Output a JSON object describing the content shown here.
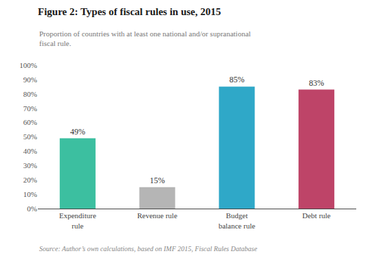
{
  "chart_data": {
    "type": "bar",
    "title": "Figure 2: Types of fiscal rules in use, 2015",
    "subtitle": "Proportion of countries with at least one national and/or supranational\nfiscal rule.",
    "source": "Source: Author’s own calculations, based on IMF 2015, Fiscal Rules Database",
    "categories": [
      "Expenditure\nrule",
      "Revenue rule",
      "Budget\nbalance rule",
      "Debt rule"
    ],
    "values": [
      49,
      15,
      85,
      83
    ],
    "value_labels": [
      "49%",
      "15%",
      "85%",
      "83%"
    ],
    "colors": [
      "#3cbfa0",
      "#b5b5b5",
      "#2fa8c8",
      "#be4468"
    ],
    "data_labels": true,
    "ylim": [
      0,
      100
    ],
    "yticks": [
      {
        "value": 0,
        "label": "0%"
      },
      {
        "value": 10,
        "label": "10%"
      },
      {
        "value": 20,
        "label": "20%"
      },
      {
        "value": 30,
        "label": "30%"
      },
      {
        "value": 40,
        "label": "40%"
      },
      {
        "value": 50,
        "label": "50%"
      },
      {
        "value": 60,
        "label": "60%"
      },
      {
        "value": 70,
        "label": "70%"
      },
      {
        "value": 80,
        "label": "80%"
      },
      {
        "value": 90,
        "label": "90%"
      },
      {
        "value": 100,
        "label": "100%"
      }
    ],
    "grid": false
  }
}
